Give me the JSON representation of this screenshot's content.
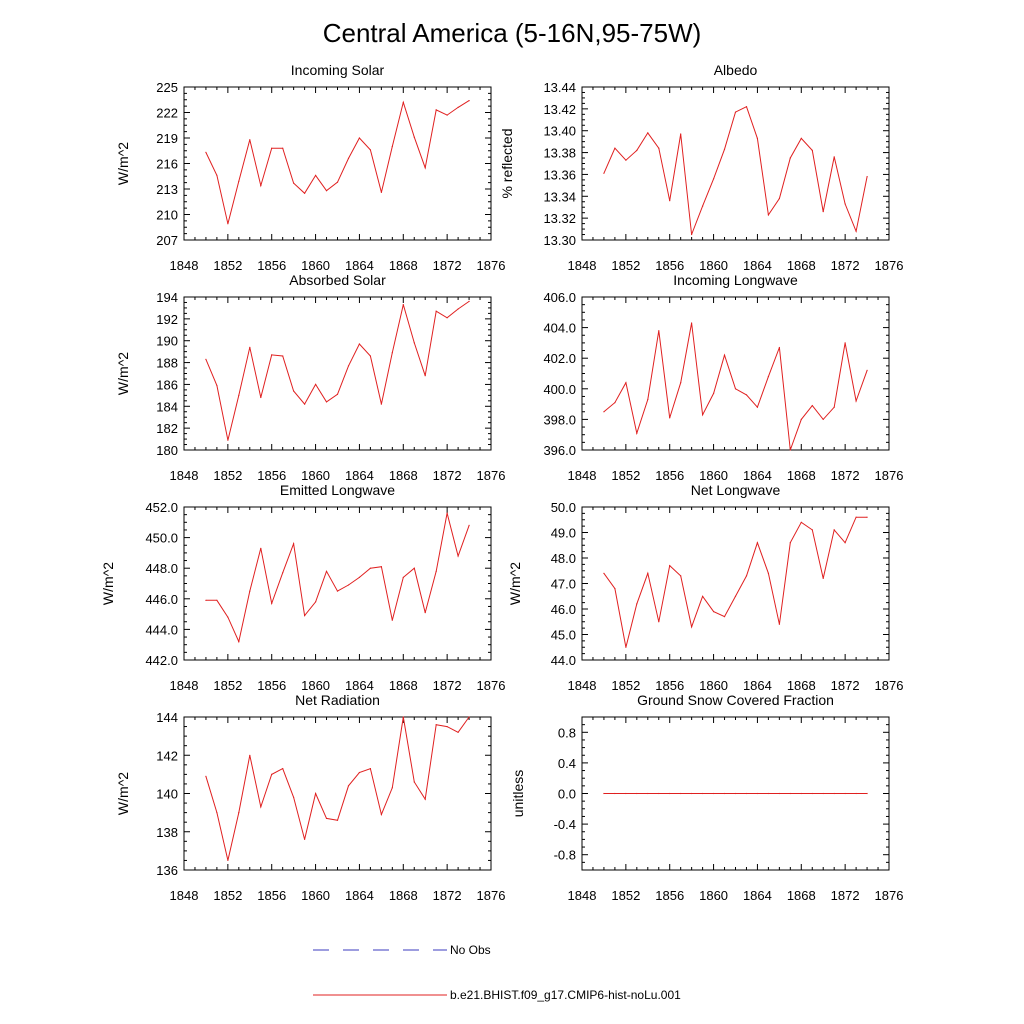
{
  "title": "Central America (5-16N,95-75W)",
  "legend": [
    {
      "label": "No Obs",
      "color": "#3b3bbf",
      "style": "dashed"
    },
    {
      "label": "b.e21.BHIST.f09_g17.CMIP6-hist-noLu.001",
      "color": "#e02020",
      "style": "solid"
    }
  ],
  "colors": {
    "series": "#e02020",
    "obs": "#3b3bbf",
    "axis": "#000000"
  },
  "chart_data": [
    {
      "type": "line",
      "title": "Incoming Solar",
      "ylabel": "W/m^2",
      "xlim": [
        1848,
        1876
      ],
      "ylim": [
        207,
        225
      ],
      "yticks": [
        "207",
        "210",
        "213",
        "216",
        "219",
        "222",
        "225"
      ],
      "xticks": [
        "1848",
        "1852",
        "1856",
        "1860",
        "1864",
        "1868",
        "1872",
        "1876"
      ],
      "x": [
        1850,
        1851,
        1852,
        1853,
        1854,
        1855,
        1856,
        1857,
        1858,
        1859,
        1860,
        1861,
        1862,
        1863,
        1864,
        1865,
        1866,
        1867,
        1868,
        1869,
        1870,
        1871,
        1872,
        1873,
        1874
      ],
      "series": [
        {
          "name": "b.e21.BHIST.f09_g17.CMIP6-hist-noLu.001",
          "values": [
            217.3,
            214.6,
            208.9,
            213.9,
            218.8,
            213.4,
            217.8,
            217.8,
            213.7,
            212.5,
            214.6,
            212.8,
            213.8,
            216.6,
            219.0,
            217.6,
            212.6,
            218.0,
            223.2,
            219.1,
            215.5,
            222.3,
            221.7,
            222.6,
            223.4
          ]
        }
      ]
    },
    {
      "type": "line",
      "title": "Albedo",
      "ylabel": "% reflected",
      "xlim": [
        1848,
        1876
      ],
      "ylim": [
        13.3,
        13.44
      ],
      "yticks": [
        "13.30",
        "13.32",
        "13.34",
        "13.36",
        "13.38",
        "13.40",
        "13.42",
        "13.44"
      ],
      "xticks": [
        "1848",
        "1852",
        "1856",
        "1860",
        "1864",
        "1868",
        "1872",
        "1876"
      ],
      "x": [
        1850,
        1851,
        1852,
        1853,
        1854,
        1855,
        1856,
        1857,
        1858,
        1859,
        1860,
        1861,
        1862,
        1863,
        1864,
        1865,
        1866,
        1867,
        1868,
        1869,
        1870,
        1871,
        1872,
        1873,
        1874
      ],
      "series": [
        {
          "name": "b.e21.BHIST.f09_g17.CMIP6-hist-noLu.001",
          "values": [
            13.361,
            13.384,
            13.373,
            13.382,
            13.398,
            13.384,
            13.336,
            13.397,
            13.305,
            13.331,
            13.356,
            13.383,
            13.417,
            13.422,
            13.393,
            13.323,
            13.338,
            13.375,
            13.393,
            13.382,
            13.326,
            13.376,
            13.333,
            13.308,
            13.358
          ]
        }
      ]
    },
    {
      "type": "line",
      "title": "Absorbed Solar",
      "ylabel": "W/m^2",
      "xlim": [
        1848,
        1876
      ],
      "ylim": [
        180,
        194
      ],
      "yticks": [
        "180",
        "182",
        "184",
        "186",
        "188",
        "190",
        "192",
        "194"
      ],
      "xticks": [
        "1848",
        "1852",
        "1856",
        "1860",
        "1864",
        "1868",
        "1872",
        "1876"
      ],
      "x": [
        1850,
        1851,
        1852,
        1853,
        1854,
        1855,
        1856,
        1857,
        1858,
        1859,
        1860,
        1861,
        1862,
        1863,
        1864,
        1865,
        1866,
        1867,
        1868,
        1869,
        1870,
        1871,
        1872,
        1873,
        1874
      ],
      "series": [
        {
          "name": "b.e21.BHIST.f09_g17.CMIP6-hist-noLu.001",
          "values": [
            188.3,
            185.9,
            180.9,
            185.0,
            189.4,
            184.8,
            188.7,
            188.6,
            185.4,
            184.2,
            186.0,
            184.4,
            185.1,
            187.7,
            189.7,
            188.6,
            184.2,
            188.9,
            193.3,
            189.8,
            186.8,
            192.7,
            192.1,
            192.9,
            193.6
          ]
        }
      ]
    },
    {
      "type": "line",
      "title": "Incoming Longwave",
      "ylabel": "",
      "xlim": [
        1848,
        1876
      ],
      "ylim": [
        396.0,
        406.0
      ],
      "yticks": [
        "396.0",
        "398.0",
        "400.0",
        "402.0",
        "404.0",
        "406.0"
      ],
      "xticks": [
        "1848",
        "1852",
        "1856",
        "1860",
        "1864",
        "1868",
        "1872",
        "1876"
      ],
      "x": [
        1850,
        1851,
        1852,
        1853,
        1854,
        1855,
        1856,
        1857,
        1858,
        1859,
        1860,
        1861,
        1862,
        1863,
        1864,
        1865,
        1866,
        1867,
        1868,
        1869,
        1870,
        1871,
        1872,
        1873,
        1874
      ],
      "series": [
        {
          "name": "b.e21.BHIST.f09_g17.CMIP6-hist-noLu.001",
          "values": [
            398.5,
            399.1,
            400.4,
            397.1,
            399.3,
            403.8,
            398.1,
            400.4,
            404.3,
            398.3,
            399.7,
            402.2,
            400.0,
            399.6,
            398.8,
            400.8,
            402.7,
            396.0,
            398.0,
            398.9,
            398.0,
            398.8,
            403.0,
            399.2,
            401.2
          ]
        }
      ]
    },
    {
      "type": "line",
      "title": "Emitted Longwave",
      "ylabel": "W/m^2",
      "xlim": [
        1848,
        1876
      ],
      "ylim": [
        442.0,
        452.0
      ],
      "yticks": [
        "442.0",
        "444.0",
        "446.0",
        "448.0",
        "450.0",
        "452.0"
      ],
      "xticks": [
        "1848",
        "1852",
        "1856",
        "1860",
        "1864",
        "1868",
        "1872",
        "1876"
      ],
      "x": [
        1850,
        1851,
        1852,
        1853,
        1854,
        1855,
        1856,
        1857,
        1858,
        1859,
        1860,
        1861,
        1862,
        1863,
        1864,
        1865,
        1866,
        1867,
        1868,
        1869,
        1870,
        1871,
        1872,
        1873,
        1874
      ],
      "series": [
        {
          "name": "b.e21.BHIST.f09_g17.CMIP6-hist-noLu.001",
          "values": [
            445.9,
            445.9,
            444.8,
            443.2,
            446.5,
            449.3,
            445.7,
            447.7,
            449.6,
            444.9,
            445.8,
            447.8,
            446.5,
            446.9,
            447.4,
            448.0,
            448.1,
            444.6,
            447.4,
            448.0,
            445.1,
            447.8,
            451.6,
            448.8,
            450.8
          ]
        }
      ]
    },
    {
      "type": "line",
      "title": "Net Longwave",
      "ylabel": "W/m^2",
      "xlim": [
        1848,
        1876
      ],
      "ylim": [
        44.0,
        50.0
      ],
      "yticks": [
        "44.0",
        "45.0",
        "46.0",
        "47.0",
        "48.0",
        "49.0",
        "50.0"
      ],
      "xticks": [
        "1848",
        "1852",
        "1856",
        "1860",
        "1864",
        "1868",
        "1872",
        "1876"
      ],
      "x": [
        1850,
        1851,
        1852,
        1853,
        1854,
        1855,
        1856,
        1857,
        1858,
        1859,
        1860,
        1861,
        1862,
        1863,
        1864,
        1865,
        1866,
        1867,
        1868,
        1869,
        1870,
        1871,
        1872,
        1873,
        1874
      ],
      "series": [
        {
          "name": "b.e21.BHIST.f09_g17.CMIP6-hist-noLu.001",
          "values": [
            47.4,
            46.8,
            44.5,
            46.2,
            47.4,
            45.5,
            47.7,
            47.3,
            45.3,
            46.5,
            45.9,
            45.7,
            46.5,
            47.3,
            48.6,
            47.4,
            45.4,
            48.6,
            49.4,
            49.1,
            47.2,
            49.1,
            48.6,
            49.6,
            49.6
          ]
        }
      ]
    },
    {
      "type": "line",
      "title": "Net Radiation",
      "ylabel": "W/m^2",
      "xlim": [
        1848,
        1876
      ],
      "ylim": [
        136,
        144
      ],
      "yticks": [
        "136",
        "138",
        "140",
        "142",
        "144"
      ],
      "xticks": [
        "1848",
        "1852",
        "1856",
        "1860",
        "1864",
        "1868",
        "1872",
        "1876"
      ],
      "x": [
        1850,
        1851,
        1852,
        1853,
        1854,
        1855,
        1856,
        1857,
        1858,
        1859,
        1860,
        1861,
        1862,
        1863,
        1864,
        1865,
        1866,
        1867,
        1868,
        1869,
        1870,
        1871,
        1872,
        1873,
        1874
      ],
      "series": [
        {
          "name": "b.e21.BHIST.f09_g17.CMIP6-hist-noLu.001",
          "values": [
            140.9,
            139.0,
            136.5,
            139.0,
            142.0,
            139.3,
            141.0,
            141.3,
            139.8,
            137.6,
            140.0,
            138.7,
            138.6,
            140.4,
            141.1,
            141.3,
            138.9,
            140.3,
            144.0,
            140.6,
            139.7,
            143.6,
            143.5,
            143.2,
            144.0
          ]
        }
      ]
    },
    {
      "type": "line",
      "title": "Ground Snow Covered Fraction",
      "ylabel": "unitless",
      "xlim": [
        1848,
        1876
      ],
      "ylim": [
        -1.0,
        1.0
      ],
      "yticks": [
        "-0.8",
        "-0.4",
        "0.0",
        "0.4",
        "0.8"
      ],
      "xticks": [
        "1848",
        "1852",
        "1856",
        "1860",
        "1864",
        "1868",
        "1872",
        "1876"
      ],
      "x": [
        1850,
        1851,
        1852,
        1853,
        1854,
        1855,
        1856,
        1857,
        1858,
        1859,
        1860,
        1861,
        1862,
        1863,
        1864,
        1865,
        1866,
        1867,
        1868,
        1869,
        1870,
        1871,
        1872,
        1873,
        1874
      ],
      "series": [
        {
          "name": "b.e21.BHIST.f09_g17.CMIP6-hist-noLu.001",
          "values": [
            0,
            0,
            0,
            0,
            0,
            0,
            0,
            0,
            0,
            0,
            0,
            0,
            0,
            0,
            0,
            0,
            0,
            0,
            0,
            0,
            0,
            0,
            0,
            0,
            0
          ]
        }
      ]
    }
  ]
}
